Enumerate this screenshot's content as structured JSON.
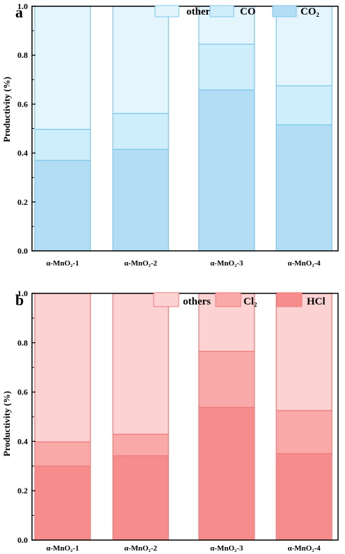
{
  "chart_data": [
    {
      "type": "bar",
      "stacked": true,
      "panel_label": "a",
      "ylabel": "Productivity (%)",
      "ylim": [
        0,
        1.0
      ],
      "yticks": [
        "0.0",
        "0.2",
        "0.4",
        "0.6",
        "0.8",
        "1.0"
      ],
      "categories": [
        "α-MnO₂-1",
        "α-MnO₂-2",
        "α-MnO₂-3",
        "α-MnO₂-4"
      ],
      "series": [
        {
          "name": "CO₂",
          "values": [
            0.37,
            0.415,
            0.658,
            0.515
          ],
          "color": "#b3dcf5"
        },
        {
          "name": "CO",
          "values": [
            0.127,
            0.147,
            0.187,
            0.16
          ],
          "color": "#cfeefb"
        },
        {
          "name": "others",
          "values": [
            0.503,
            0.438,
            0.155,
            0.325
          ],
          "color": "#e4f5fd"
        }
      ],
      "edge_color": "#7cc6ec",
      "legend_position": "top-right"
    },
    {
      "type": "bar",
      "stacked": true,
      "panel_label": "b",
      "ylabel": "Productivity (%)",
      "ylim": [
        0,
        1.0
      ],
      "yticks": [
        "0.0",
        "0.2",
        "0.4",
        "0.6",
        "0.8",
        "1.0"
      ],
      "categories": [
        "α-MnO₂-1",
        "α-MnO₂-2",
        "α-MnO₂-3",
        "α-MnO₂-4"
      ],
      "series": [
        {
          "name": "HCl",
          "values": [
            0.3,
            0.342,
            0.538,
            0.35
          ],
          "color": "#f78c8c"
        },
        {
          "name": "Cl₂",
          "values": [
            0.098,
            0.087,
            0.227,
            0.175
          ],
          "color": "#faa9a9"
        },
        {
          "name": "others",
          "values": [
            0.602,
            0.571,
            0.235,
            0.475
          ],
          "color": "#fcd2d2"
        }
      ],
      "edge_color": "#ee7a7a",
      "legend_position": "top-right"
    }
  ]
}
